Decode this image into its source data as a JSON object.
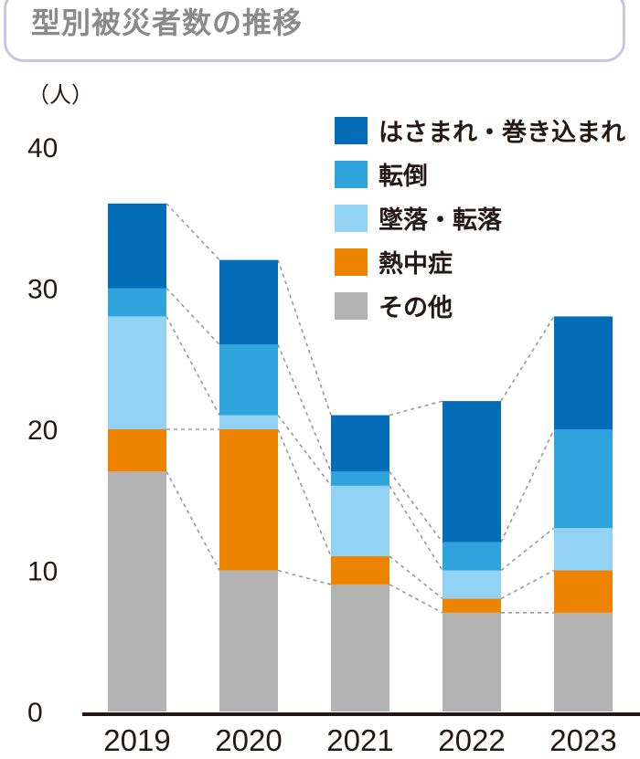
{
  "chart_data": {
    "type": "bar",
    "stacked": true,
    "title": "型別被災者数の推移",
    "unit_label": "（人）",
    "categories": [
      "2019",
      "2020",
      "2021",
      "2022",
      "2023"
    ],
    "ylim": [
      0,
      40
    ],
    "yticks": [
      "0",
      "10",
      "20",
      "30",
      "40"
    ],
    "series": [
      {
        "name": "その他",
        "color": "#b3b3b3",
        "values": [
          17,
          10,
          9,
          7,
          7
        ]
      },
      {
        "name": "熱中症",
        "color": "#ee8300",
        "values": [
          3,
          10,
          2,
          1,
          3
        ]
      },
      {
        "name": "墜落・転落",
        "color": "#92d2f3",
        "values": [
          8,
          1,
          5,
          2,
          3
        ]
      },
      {
        "name": "転倒",
        "color": "#2fa3dc",
        "values": [
          2,
          5,
          1,
          2,
          7
        ]
      },
      {
        "name": "はさまれ・巻き込まれ",
        "color": "#036eb7",
        "values": [
          6,
          6,
          4,
          10,
          8
        ]
      }
    ],
    "legend_order": [
      "はさまれ・巻き込まれ",
      "転倒",
      "墜落・転落",
      "熱中症",
      "その他"
    ],
    "legend_position": "top-right",
    "connector_lines": "dashed",
    "grid": false
  }
}
